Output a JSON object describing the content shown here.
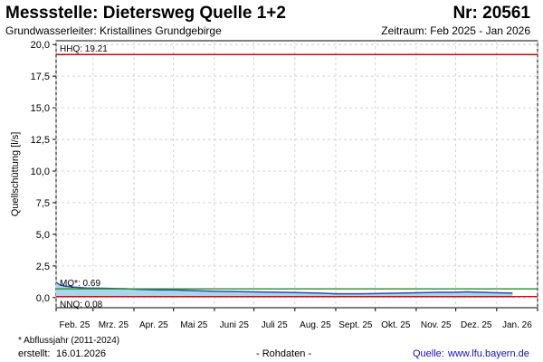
{
  "header": {
    "title": "Messstelle: Dietersweg Quelle 1+2",
    "number": "Nr: 20561",
    "subtitle": "Grundwasserleiter: Kristallines Grundgebirge",
    "period": "Zeitraum: Feb 2025 - Jan 2026"
  },
  "footer": {
    "note": "* Abflussjahr (2011-2024)",
    "created_label": "erstellt:",
    "created_date": "16.01.2026",
    "raw_data": "- Rohdaten -",
    "source_label": "Quelle:",
    "source_url": "www.lfu.bayern.de"
  },
  "colors": {
    "hhq": "#e00000",
    "mq": "#2a8a2a",
    "nnq": "#e00000",
    "series_line": "#2f49b5",
    "series_fill": "#a9d6ea",
    "grid": "#c8c8c8"
  },
  "chart_data": {
    "type": "area",
    "ylabel": "Quellschüttung [l/s]",
    "xlabel": "",
    "ylim": [
      -0.8,
      20.3
    ],
    "yticks": [
      0.0,
      2.5,
      5.0,
      7.5,
      10.0,
      12.5,
      15.0,
      17.5,
      20.0
    ],
    "ytick_labels": [
      "0,0",
      "2,5",
      "5,0",
      "7,5",
      "10,0",
      "12,5",
      "15,0",
      "17,5",
      "20,0"
    ],
    "xlim": [
      "2025-02-01",
      "2026-02-01"
    ],
    "xtick_dates": [
      "2025-02-01",
      "2025-03-01",
      "2025-04-01",
      "2025-05-01",
      "2025-06-01",
      "2025-07-01",
      "2025-08-01",
      "2025-09-01",
      "2025-10-01",
      "2025-11-01",
      "2025-12-01",
      "2026-01-01",
      "2026-02-01"
    ],
    "xtick_labels": [
      "Feb. 25",
      "Mrz. 25",
      "Apr. 25",
      "Mai 25",
      "Juni 25",
      "Juli 25",
      "Aug. 25",
      "Sept. 25",
      "Okt. 25",
      "Nov. 25",
      "Dez. 25",
      "Jan. 26"
    ],
    "grid": true,
    "reference_lines": [
      {
        "name": "HHQ",
        "label": "HHQ: 19.21",
        "value": 19.21,
        "color": "#e00000"
      },
      {
        "name": "MQ*",
        "label": "MQ*: 0.69",
        "value": 0.69,
        "color": "#2a8a2a"
      },
      {
        "name": "NNQ",
        "label": "NNQ: 0.08",
        "value": 0.08,
        "color": "#e00000"
      }
    ],
    "series": [
      {
        "x": [
          "2025-02-01",
          "2025-02-04",
          "2025-02-08",
          "2025-02-12",
          "2025-02-18",
          "2025-02-25",
          "2025-03-05",
          "2025-03-15",
          "2025-03-25",
          "2025-04-05",
          "2025-04-20",
          "2025-05-01",
          "2025-05-15",
          "2025-06-01",
          "2025-06-15",
          "2025-07-01",
          "2025-07-20",
          "2025-08-01",
          "2025-08-20",
          "2025-09-01",
          "2025-09-20",
          "2025-10-01",
          "2025-10-20",
          "2025-11-01",
          "2025-11-10",
          "2025-11-20",
          "2025-12-01",
          "2025-12-10",
          "2025-12-20",
          "2026-01-01",
          "2026-01-13"
        ],
        "y": [
          1.2,
          1.0,
          0.9,
          0.85,
          0.8,
          0.75,
          0.75,
          0.72,
          0.7,
          0.65,
          0.6,
          0.6,
          0.55,
          0.5,
          0.48,
          0.45,
          0.42,
          0.4,
          0.35,
          0.3,
          0.3,
          0.32,
          0.35,
          0.38,
          0.4,
          0.42,
          0.42,
          0.45,
          0.42,
          0.38,
          0.35
        ]
      }
    ]
  }
}
